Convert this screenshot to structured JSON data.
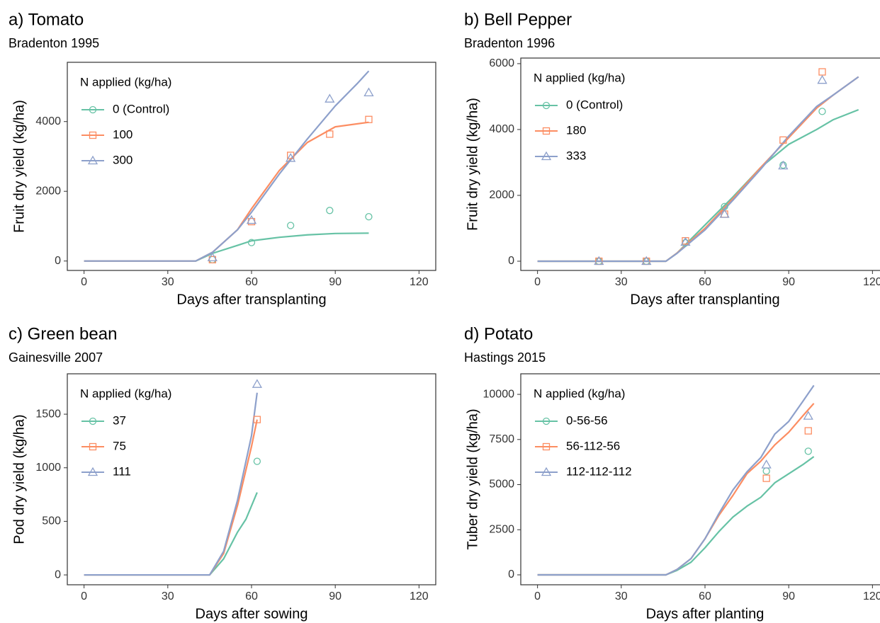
{
  "chart_data": [
    {
      "type": "line",
      "title": "a) Tomato",
      "subtitle": "Bradenton 1995",
      "xlabel": "Days after transplanting",
      "ylabel": "Fruit dry yield (kg/ha)",
      "legend_title": "N applied (kg/ha)",
      "legend": "top-left",
      "grid": false,
      "xlim": [
        -6,
        126
      ],
      "xticks": [
        0,
        30,
        60,
        90,
        120
      ],
      "ylim": [
        -270,
        5700
      ],
      "yticks": [
        0,
        2000,
        4000
      ],
      "series": [
        {
          "name": "0 (Control)",
          "color": "#66c2a5",
          "marker": "circle",
          "x": [
            0,
            40,
            46,
            55,
            60,
            70,
            80,
            90,
            102
          ],
          "values": [
            0,
            0,
            220,
            450,
            580,
            680,
            750,
            790,
            800
          ],
          "observed_x": [
            46,
            60,
            74,
            88,
            102
          ],
          "observed": [
            40,
            530,
            1020,
            1450,
            1270
          ]
        },
        {
          "name": "100",
          "color": "#fc8d62",
          "marker": "square",
          "x": [
            0,
            40,
            46,
            55,
            60,
            70,
            80,
            90,
            102
          ],
          "values": [
            0,
            0,
            250,
            900,
            1500,
            2600,
            3400,
            3850,
            3980
          ],
          "observed_x": [
            46,
            60,
            74,
            88,
            102
          ],
          "observed": [
            40,
            1130,
            3030,
            3640,
            4060
          ]
        },
        {
          "name": "300",
          "color": "#8da0cb",
          "marker": "triangle",
          "x": [
            0,
            40,
            46,
            55,
            60,
            70,
            80,
            90,
            98,
            102
          ],
          "values": [
            0,
            0,
            250,
            900,
            1400,
            2500,
            3500,
            4450,
            5100,
            5450
          ],
          "observed_x": [
            46,
            60,
            74,
            88,
            102
          ],
          "observed": [
            100,
            1170,
            2950,
            4650,
            4830
          ]
        }
      ]
    },
    {
      "type": "line",
      "title": "b) Bell Pepper",
      "subtitle": "Bradenton 1996",
      "xlabel": "Days after transplanting",
      "ylabel": "Fruit dry yield (kg/ha)",
      "legend_title": "N applied (kg/ha)",
      "legend": "top-left",
      "grid": false,
      "xlim": [
        -6,
        126
      ],
      "xticks": [
        0,
        30,
        60,
        90,
        120
      ],
      "ylim": [
        -280,
        6170
      ],
      "yticks": [
        0,
        2000,
        4000,
        6000
      ],
      "series": [
        {
          "name": "0 (Control)",
          "color": "#66c2a5",
          "marker": "circle",
          "x": [
            0,
            46,
            50,
            60,
            70,
            80,
            90,
            100,
            106,
            115
          ],
          "values": [
            0,
            0,
            250,
            1100,
            1950,
            2850,
            3550,
            4000,
            4300,
            4600
          ],
          "observed_x": [
            22,
            39,
            53,
            67,
            88,
            102
          ],
          "observed": [
            0,
            0,
            560,
            1660,
            2920,
            4550
          ]
        },
        {
          "name": "180",
          "color": "#fc8d62",
          "marker": "square",
          "x": [
            0,
            46,
            50,
            60,
            70,
            80,
            90,
            100,
            106,
            115
          ],
          "values": [
            0,
            0,
            250,
            1000,
            1900,
            2850,
            3750,
            4650,
            5050,
            5600
          ],
          "observed_x": [
            22,
            39,
            53,
            67,
            88,
            102
          ],
          "observed": [
            0,
            0,
            620,
            1430,
            3680,
            5750
          ]
        },
        {
          "name": "333",
          "color": "#8da0cb",
          "marker": "triangle",
          "x": [
            0,
            46,
            50,
            60,
            70,
            80,
            90,
            100,
            106,
            115
          ],
          "values": [
            0,
            0,
            240,
            950,
            1850,
            2800,
            3800,
            4700,
            5050,
            5600
          ],
          "observed_x": [
            22,
            39,
            53,
            67,
            88,
            102
          ],
          "observed": [
            0,
            0,
            580,
            1430,
            2900,
            5500
          ]
        }
      ]
    },
    {
      "type": "line",
      "title": "c) Green bean",
      "subtitle": "Gainesville 2007",
      "xlabel": "Days after sowing",
      "ylabel": "Pod dry yield (kg/ha)",
      "legend_title": "N applied (kg/ha)",
      "legend": "top-left",
      "grid": false,
      "xlim": [
        -6,
        126
      ],
      "xticks": [
        0,
        30,
        60,
        90,
        120
      ],
      "ylim": [
        -92,
        1877
      ],
      "yticks": [
        0,
        500,
        1000,
        1500
      ],
      "series": [
        {
          "name": "37",
          "color": "#66c2a5",
          "marker": "circle",
          "x": [
            0,
            45,
            50,
            55,
            58,
            62
          ],
          "values": [
            0,
            0,
            150,
            400,
            520,
            770
          ],
          "observed_x": [
            62
          ],
          "observed": [
            1060
          ]
        },
        {
          "name": "75",
          "color": "#fc8d62",
          "marker": "square",
          "x": [
            0,
            45,
            50,
            55,
            60,
            62
          ],
          "values": [
            0,
            0,
            200,
            650,
            1200,
            1450
          ],
          "observed_x": [
            62
          ],
          "observed": [
            1450
          ]
        },
        {
          "name": "111",
          "color": "#8da0cb",
          "marker": "triangle",
          "x": [
            0,
            45,
            50,
            55,
            60,
            62
          ],
          "values": [
            0,
            0,
            220,
            700,
            1300,
            1700
          ],
          "observed_x": [
            62
          ],
          "observed": [
            1780
          ]
        }
      ]
    },
    {
      "type": "line",
      "title": "d) Potato",
      "subtitle": "Hastings 2015",
      "xlabel": "Days after planting",
      "ylabel": "Tuber dry yield (kg/ha)",
      "legend_title": "N applied (kg/ha)",
      "legend": "top-left",
      "grid": false,
      "xlim": [
        -6,
        126
      ],
      "xticks": [
        0,
        30,
        60,
        90,
        120
      ],
      "ylim": [
        -550,
        11140
      ],
      "yticks": [
        0,
        2500,
        5000,
        7500,
        10000
      ],
      "series": [
        {
          "name": "0-56-56",
          "color": "#66c2a5",
          "marker": "circle",
          "x": [
            0,
            46,
            50,
            55,
            60,
            65,
            70,
            75,
            80,
            85,
            90,
            95,
            99
          ],
          "values": [
            0,
            0,
            250,
            700,
            1500,
            2400,
            3200,
            3800,
            4300,
            5100,
            5600,
            6100,
            6550
          ],
          "observed_x": [
            82,
            97
          ],
          "observed": [
            5750,
            6850
          ]
        },
        {
          "name": "56-112-56",
          "color": "#fc8d62",
          "marker": "square",
          "x": [
            0,
            46,
            50,
            55,
            60,
            65,
            70,
            75,
            80,
            85,
            90,
            95,
            99
          ],
          "values": [
            0,
            0,
            300,
            900,
            2000,
            3300,
            4400,
            5600,
            6300,
            7200,
            7900,
            8800,
            9500
          ],
          "observed_x": [
            82,
            97
          ],
          "observed": [
            5350,
            7980
          ]
        },
        {
          "name": "112-112-112",
          "color": "#8da0cb",
          "marker": "triangle",
          "x": [
            0,
            46,
            50,
            55,
            60,
            65,
            70,
            75,
            80,
            85,
            90,
            95,
            99
          ],
          "values": [
            0,
            0,
            300,
            900,
            2000,
            3400,
            4700,
            5700,
            6500,
            7800,
            8500,
            9600,
            10500
          ],
          "observed_x": [
            82,
            97
          ],
          "observed": [
            6100,
            8800
          ]
        }
      ]
    }
  ]
}
